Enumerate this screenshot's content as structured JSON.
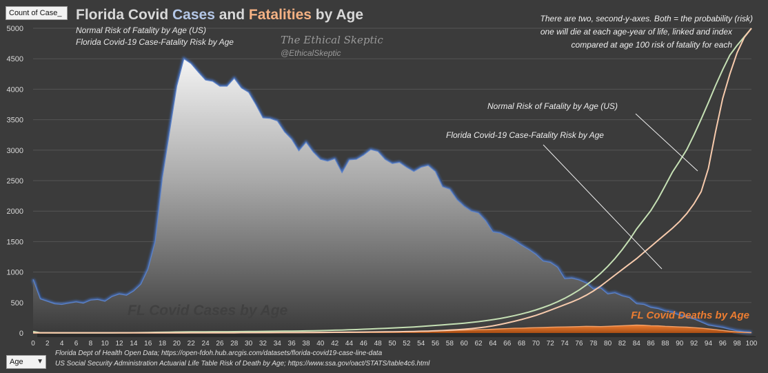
{
  "chart_data": {
    "type": "area",
    "title": "Florida Covid Cases and Fatalities by Age",
    "title_parts": [
      {
        "text": "Florida Covid ",
        "color": "#d9d9d9"
      },
      {
        "text": "Cases",
        "color": "#b4c7e7"
      },
      {
        "text": " and ",
        "color": "#d9d9d9"
      },
      {
        "text": "Fatalities",
        "color": "#f4b183"
      },
      {
        "text": " by Age",
        "color": "#d9d9d9"
      }
    ],
    "subtitle_lines": [
      "Normal Risk of Fatality by Age (US)",
      "Florida Covid-19 Case-Fatality Risk by Age"
    ],
    "watermark": "The Ethical Skeptic",
    "handle": "@EthicalSkeptic",
    "note_lines": [
      "There are two, second-y-axes. Both = the probability (risk)",
      "one will die at each age-year of life, linked and index",
      "compared at age 100  risk of fatality for each"
    ],
    "xlabel": "Age",
    "ylabel": "Count of Case_",
    "xlim": [
      0,
      100
    ],
    "ylim": [
      0,
      5000
    ],
    "y_ticks": [
      0,
      500,
      1000,
      1500,
      2000,
      2500,
      3000,
      3500,
      4000,
      4500,
      5000
    ],
    "x_ticks": [
      0,
      2,
      4,
      6,
      8,
      10,
      12,
      14,
      16,
      18,
      20,
      22,
      24,
      26,
      28,
      30,
      32,
      34,
      36,
      38,
      40,
      42,
      44,
      46,
      48,
      50,
      52,
      54,
      56,
      58,
      60,
      62,
      64,
      66,
      68,
      70,
      72,
      74,
      76,
      78,
      80,
      82,
      84,
      86,
      88,
      90,
      92,
      94,
      96,
      98,
      100
    ],
    "series": [
      {
        "name": "FL Covid Cases by Age",
        "kind": "area",
        "color": "#b8b8b8",
        "values": [
          880,
          560,
          520,
          480,
          470,
          490,
          510,
          490,
          540,
          550,
          520,
          600,
          640,
          620,
          690,
          800,
          1050,
          1500,
          2550,
          3300,
          4050,
          4500,
          4420,
          4280,
          4150,
          4130,
          4050,
          4050,
          4180,
          4020,
          3950,
          3750,
          3530,
          3520,
          3480,
          3300,
          3180,
          2990,
          3130,
          2970,
          2850,
          2820,
          2860,
          2630,
          2840,
          2850,
          2920,
          3010,
          2980,
          2850,
          2780,
          2800,
          2720,
          2650,
          2720,
          2750,
          2650,
          2400,
          2360,
          2190,
          2080,
          2000,
          1970,
          1840,
          1660,
          1640,
          1580,
          1520,
          1440,
          1370,
          1290,
          1180,
          1160,
          1080,
          890,
          900,
          870,
          820,
          720,
          740,
          640,
          660,
          610,
          580,
          480,
          470,
          420,
          400,
          360,
          340,
          290,
          260,
          230,
          180,
          130,
          110,
          90,
          60,
          35,
          20,
          12
        ]
      },
      {
        "name": "FL Covid Deaths by Age",
        "kind": "area",
        "color": "#ed7d31",
        "values": [
          0,
          0,
          0,
          0,
          0,
          0,
          0,
          0,
          0,
          0,
          0,
          0,
          0,
          0,
          0,
          0,
          0,
          0,
          0,
          0,
          0,
          0,
          1,
          1,
          1,
          1,
          1,
          1,
          1,
          2,
          2,
          2,
          2,
          3,
          3,
          4,
          4,
          4,
          5,
          5,
          6,
          7,
          8,
          8,
          9,
          10,
          11,
          12,
          13,
          14,
          16,
          18,
          20,
          22,
          25,
          28,
          32,
          36,
          40,
          44,
          48,
          52,
          55,
          58,
          62,
          68,
          72,
          78,
          80,
          85,
          88,
          90,
          95,
          98,
          100,
          102,
          105,
          110,
          108,
          105,
          110,
          115,
          120,
          125,
          130,
          128,
          120,
          118,
          110,
          105,
          100,
          96,
          88,
          80,
          68,
          55,
          42,
          28,
          18,
          10,
          5
        ]
      },
      {
        "name": "Normal Risk of Fatality by Age (US)",
        "kind": "line",
        "axis": "secondary",
        "color": "#c5e0b4",
        "values": [
          25,
          5,
          4,
          3,
          3,
          3,
          3,
          3,
          3,
          3,
          3,
          3,
          4,
          5,
          6,
          7,
          9,
          11,
          13,
          15,
          17,
          18,
          19,
          20,
          20,
          21,
          21,
          22,
          23,
          24,
          25,
          26,
          27,
          28,
          29,
          30,
          31,
          33,
          35,
          37,
          40,
          43,
          46,
          49,
          53,
          57,
          62,
          67,
          72,
          77,
          82,
          88,
          94,
          100,
          108,
          116,
          124,
          133,
          142,
          152,
          162,
          174,
          187,
          202,
          219,
          238,
          260,
          285,
          313,
          344,
          379,
          418,
          462,
          512,
          569,
          633,
          705,
          786,
          877,
          979,
          1094,
          1222,
          1366,
          1527,
          1706,
          1856,
          2010,
          2200,
          2420,
          2640,
          2820,
          3010,
          3250,
          3510,
          3780,
          4060,
          4320,
          4560,
          4720,
          4860,
          5000
        ]
      },
      {
        "name": "Florida Covid-19 Case-Fatality Risk by Age",
        "kind": "line",
        "axis": "secondary",
        "color": "#f8cbad",
        "values": [
          5,
          4,
          4,
          4,
          4,
          4,
          4,
          4,
          4,
          4,
          4,
          4,
          4,
          4,
          4,
          4,
          4,
          4,
          4,
          4,
          4,
          4,
          4,
          5,
          5,
          5,
          5,
          5,
          5,
          6,
          6,
          6,
          7,
          7,
          8,
          8,
          9,
          9,
          10,
          10,
          11,
          11,
          12,
          13,
          14,
          15,
          16,
          17,
          18,
          19,
          20,
          22,
          24,
          26,
          29,
          32,
          36,
          41,
          47,
          54,
          62,
          72,
          85,
          100,
          118,
          140,
          165,
          192,
          222,
          255,
          290,
          330,
          375,
          420,
          465,
          510,
          560,
          620,
          690,
          770,
          860,
          950,
          1040,
          1130,
          1220,
          1320,
          1420,
          1520,
          1620,
          1720,
          1830,
          1960,
          2120,
          2320,
          2700,
          3300,
          3850,
          4250,
          4600,
          4850,
          5000
        ]
      }
    ],
    "annotations": [
      {
        "text": "FL Covid Cases by Age",
        "color": "#404040"
      },
      {
        "text": "FL Covid Deaths by Age",
        "color": "#ed7d31"
      },
      {
        "text": "Normal Risk of Fatality by Age (US)",
        "color": "#eeeeee"
      },
      {
        "text": "Florida Covid-19 Case-Fatality Risk by Age",
        "color": "#eeeeee"
      }
    ],
    "sources": [
      "Florida Dept of Health Open Data; https://open-fdoh.hub.arcgis.com/datasets/florida-covid19-case-line-data",
      "US Social Security Administration Actuarial Life Table Risk of Death by Age; https://www.ssa.gov/oact/STATS/table4c6.html"
    ],
    "grid": true
  },
  "fields": {
    "count_label": "Count of Case_",
    "age_label": "Age"
  },
  "colors": {
    "background": "#3b3b3b",
    "grid": "#555555",
    "tick_text": "#d9d9d9",
    "case_outline": "#4472c4"
  }
}
